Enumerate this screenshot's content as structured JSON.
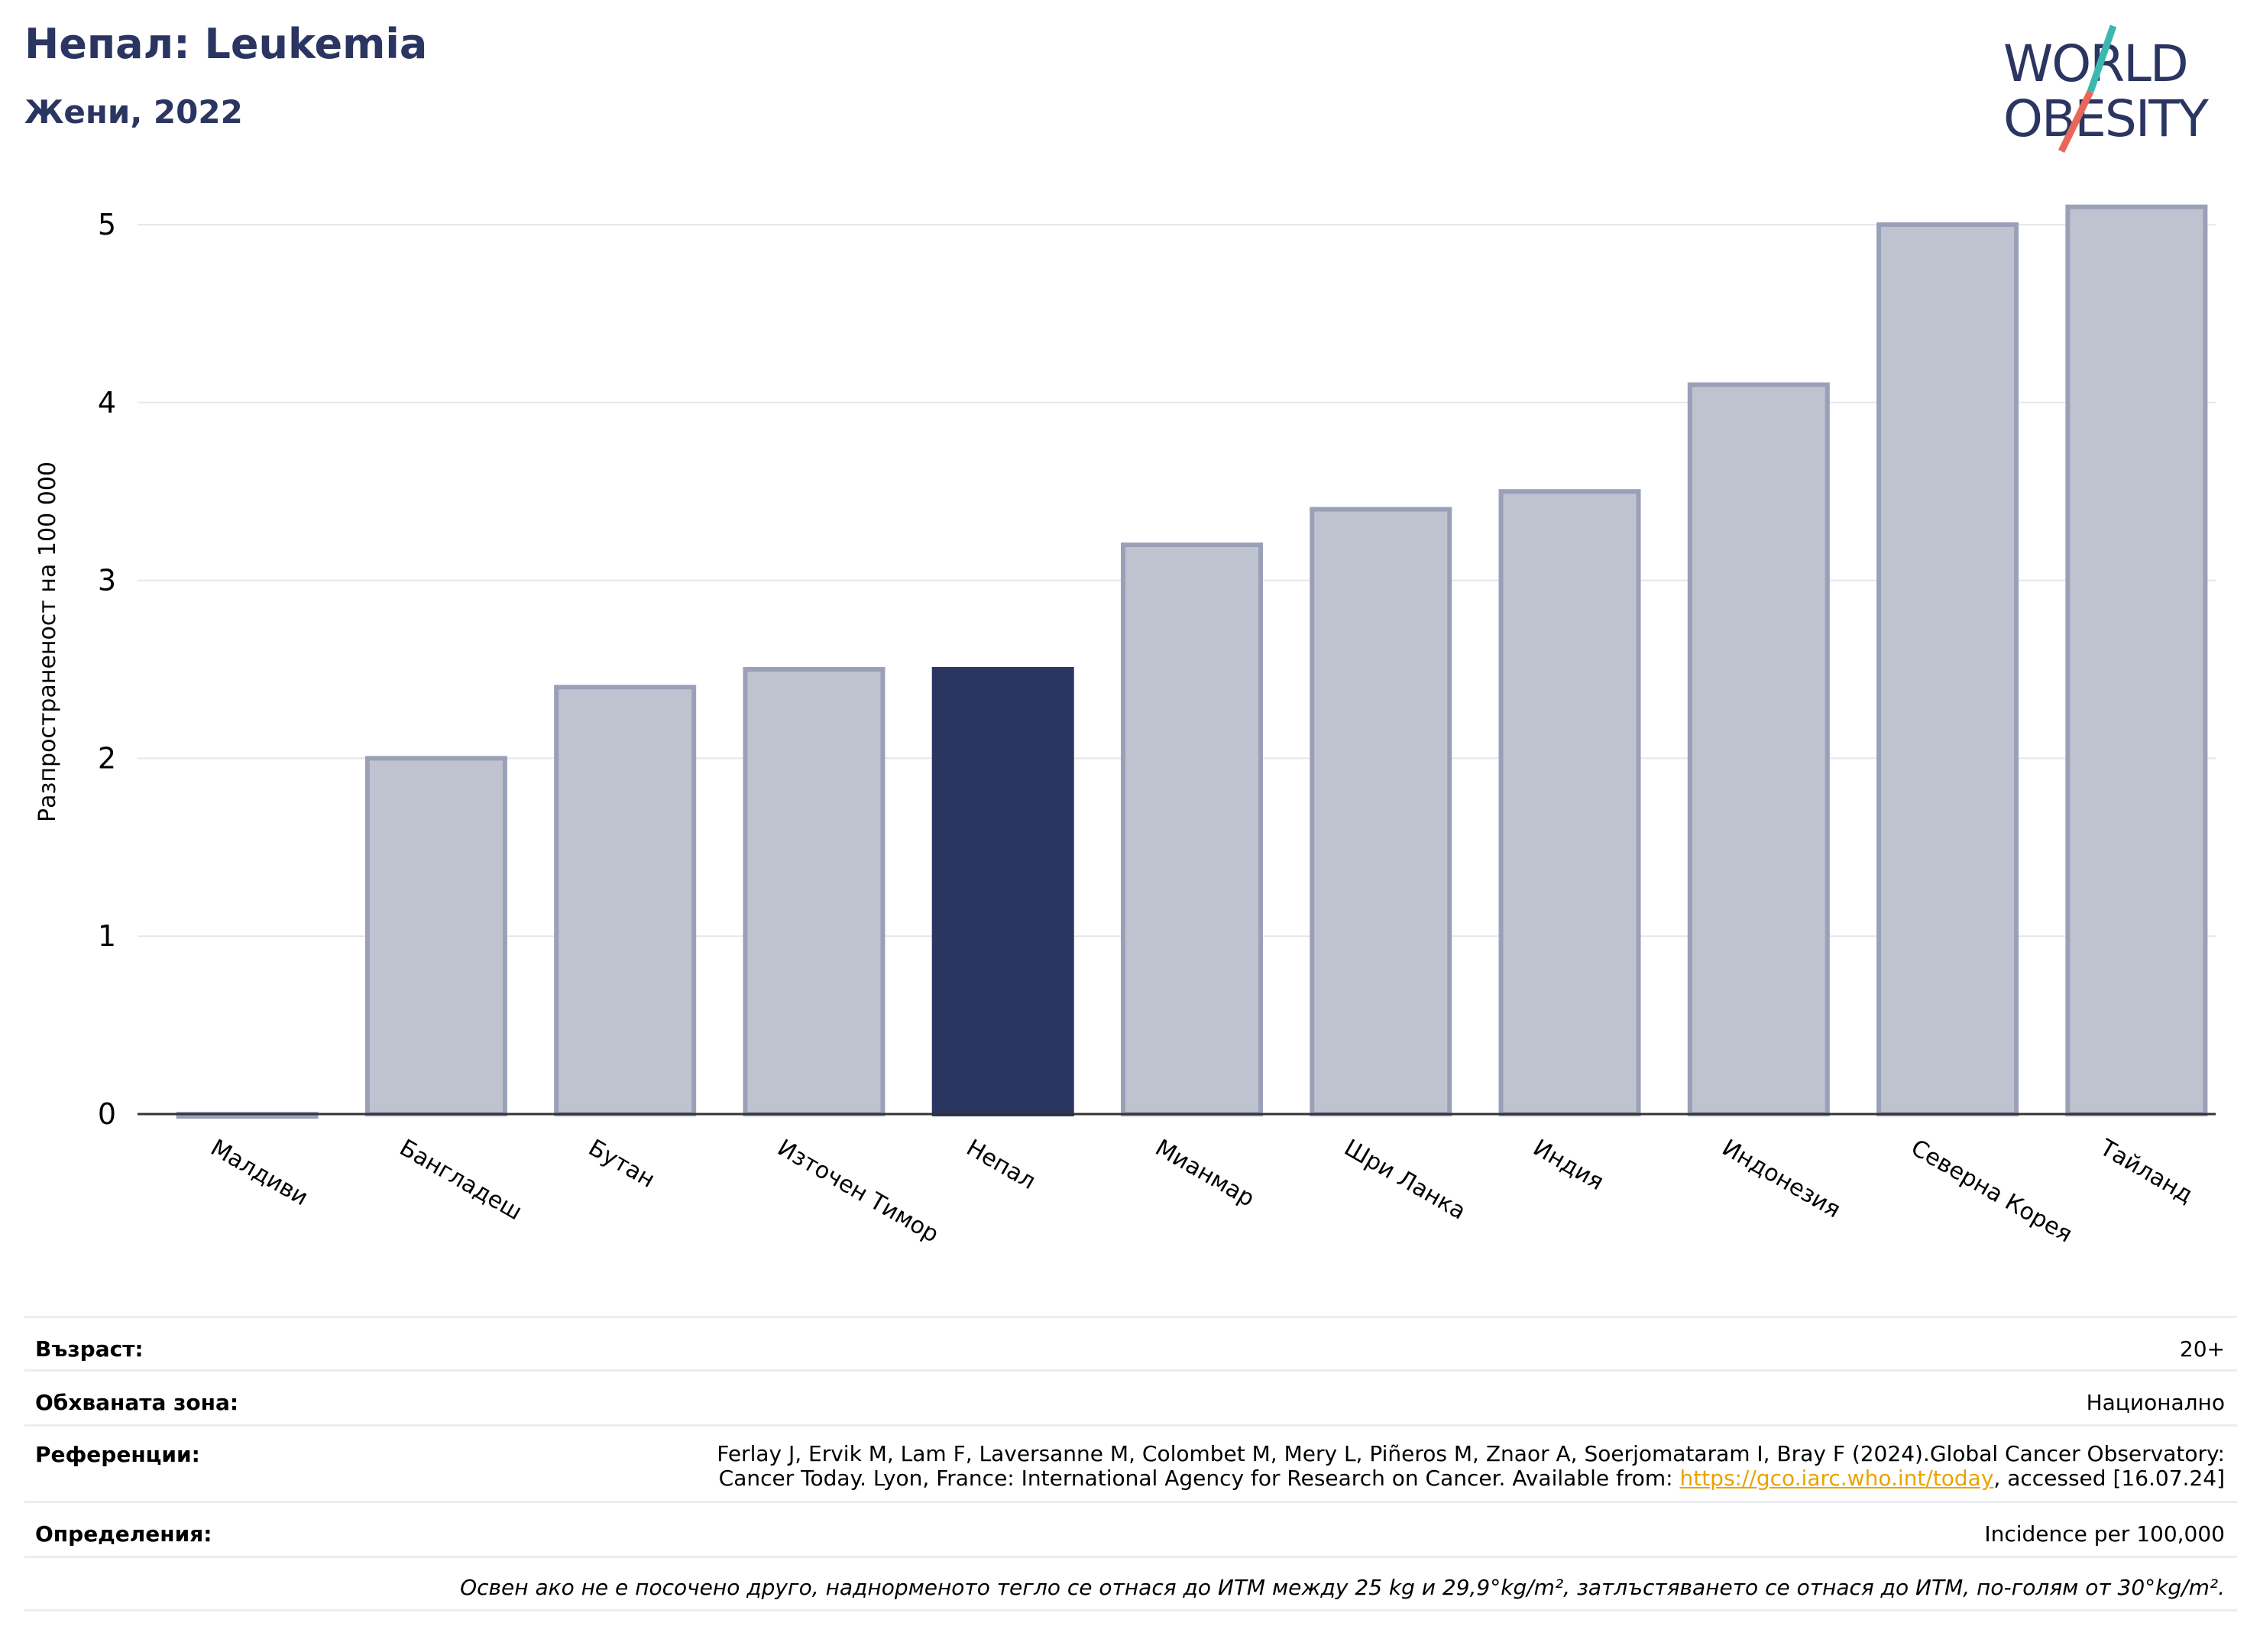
{
  "header": {
    "title": "Непал: Leukemia",
    "subtitle": "Жени, 2022"
  },
  "logo": {
    "line1": "WORLD",
    "line2": "OBESITY",
    "colors": {
      "text": "#2b3562",
      "slash_teal": "#3bb8b0",
      "slash_red": "#e8665a"
    }
  },
  "chart_data": {
    "type": "bar",
    "categories": [
      "Малдиви",
      "Бангладеш",
      "Бутан",
      "Източен Тимор",
      "Непал",
      "Мианмар",
      "Шри Ланка",
      "Индия",
      "Индонезия",
      "Северна Корея",
      "Тайланд"
    ],
    "values": [
      0,
      2.0,
      2.4,
      2.5,
      2.5,
      3.2,
      3.4,
      3.5,
      4.1,
      5.0,
      5.1
    ],
    "highlight": "Непал",
    "ylabel": "Разпространеност  на 100 000",
    "xlabel": "",
    "ylim": [
      0,
      5.2
    ],
    "yticks": [
      0,
      1,
      2,
      3,
      4,
      5
    ],
    "grid": true,
    "colors": {
      "bar": "#bfc3cf",
      "bar_edge": "#9aa0b8",
      "highlight": "#2b3562"
    }
  },
  "footer": {
    "age_label": "Възраст:",
    "age_value": "20+",
    "area_label": "Обхваната зона:",
    "area_value": "Национално",
    "refs_label": "Референции:",
    "refs_line1": "Ferlay J, Ervik M, Lam F, Laversanne M, Colombet M, Mery L, Piñeros M, Znaor A, Soerjomataram I, Bray F (2024).Global Cancer Observatory:",
    "refs_line2_pre": "Cancer Today. Lyon, France: International Agency for Research on Cancer. Available from: ",
    "refs_link": "https://gco.iarc.who.int/today",
    "refs_line2_post": ", accessed [16.07.24]",
    "defs_label": "Определения:",
    "defs_value": "Incidence per 100,000",
    "note": "Освен ако не е посочено друго, наднорменото тегло се отнася до ИТМ между 25 kg и 29,9°kg/m², затлъстяването се отнася до ИТМ, по-голям от 30°kg/m²."
  }
}
